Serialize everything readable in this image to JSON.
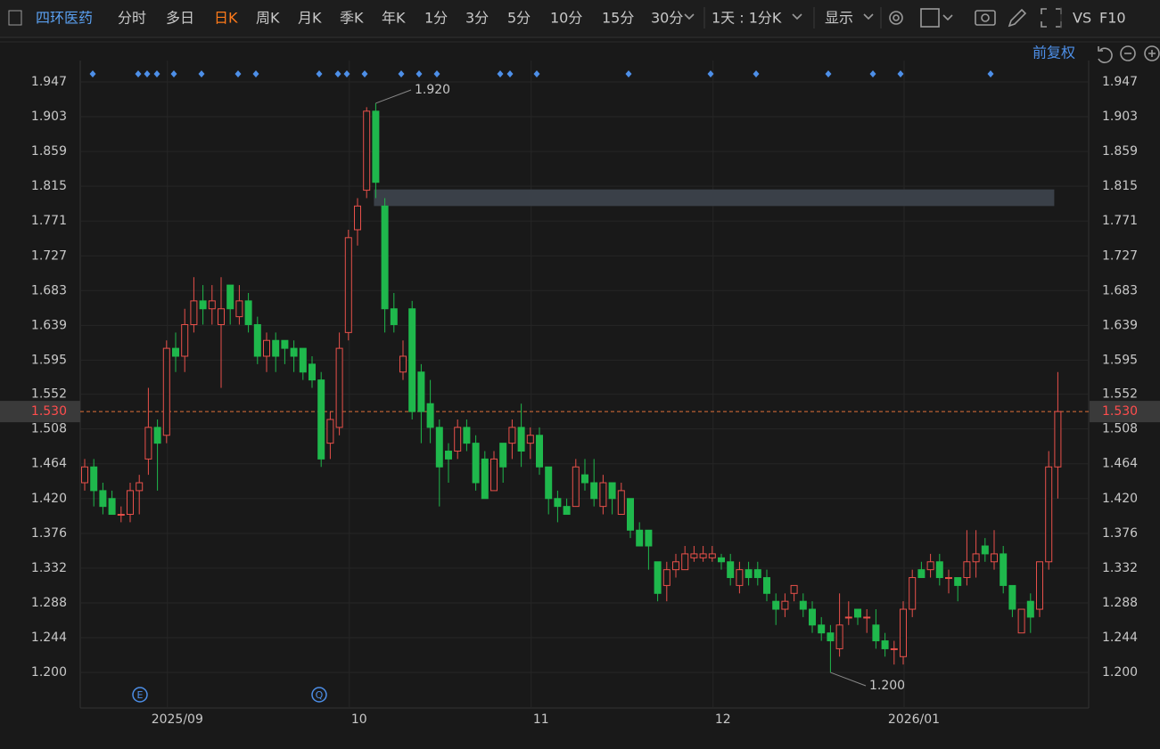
{
  "toolbar": {
    "items": [
      "四环医药",
      "分时",
      "多日",
      "日K",
      "周K",
      "月K",
      "季K",
      "年K",
      "1分",
      "3分",
      "5分",
      "10分",
      "15分",
      "30分",
      "1天 : 1分K",
      "显示",
      "VS",
      "F10"
    ],
    "adjust": "前复权"
  },
  "chart_data": {
    "type": "candlestick",
    "categories": [
      null,
      null,
      null,
      null,
      null,
      null,
      null,
      null,
      null,
      "2025/09",
      null,
      null,
      null,
      null,
      null,
      null,
      null,
      null,
      null,
      null,
      null,
      null,
      null,
      null,
      null,
      null,
      null,
      null,
      null,
      "10",
      null,
      null,
      null,
      null,
      null,
      null,
      null,
      null,
      null,
      null,
      null,
      null,
      null,
      null,
      null,
      null,
      null,
      null,
      null,
      "11",
      null,
      null,
      null,
      null,
      null,
      null,
      null,
      null,
      null,
      null,
      null,
      null,
      null,
      null,
      null,
      null,
      null,
      null,
      null,
      "12",
      null,
      null,
      null,
      null,
      null,
      null,
      null,
      null,
      null,
      null,
      null,
      null,
      null,
      null,
      null,
      null,
      null,
      null,
      null,
      null,
      "2026/01",
      null,
      null,
      null,
      null,
      null,
      null,
      null,
      null,
      null,
      null,
      null,
      null,
      null,
      null,
      null,
      null,
      null
    ],
    "open": [
      1.44,
      1.46,
      1.43,
      1.42,
      1.4,
      1.4,
      1.43,
      1.47,
      1.51,
      1.5,
      1.61,
      1.6,
      1.64,
      1.67,
      1.66,
      1.64,
      1.69,
      1.65,
      1.67,
      1.64,
      1.6,
      1.62,
      1.62,
      1.61,
      1.61,
      1.59,
      1.57,
      1.49,
      1.51,
      1.63,
      1.76,
      1.81,
      1.91,
      1.79,
      1.66,
      1.58,
      1.66,
      1.58,
      1.54,
      1.51,
      1.48,
      1.48,
      1.51,
      1.49,
      1.47,
      1.43,
      1.49,
      1.49,
      1.51,
      1.49,
      1.5,
      1.46,
      1.42,
      1.41,
      1.41,
      1.45,
      1.44,
      1.41,
      1.44,
      1.4,
      1.42,
      1.38,
      1.38,
      1.34,
      1.31,
      1.33,
      1.33,
      1.345,
      1.345,
      1.345,
      1.345,
      1.34,
      1.31,
      1.33,
      1.33,
      1.32,
      1.29,
      1.28,
      1.3,
      1.29,
      1.28,
      1.26,
      1.25,
      1.23,
      1.27,
      1.28,
      1.27,
      1.26,
      1.24,
      1.23,
      1.22,
      1.28,
      1.33,
      1.33,
      1.34,
      1.32,
      1.32,
      1.32,
      1.34,
      1.36,
      1.34,
      1.35,
      1.31,
      1.25,
      1.29,
      1.28,
      1.34,
      1.46
    ],
    "high": [
      1.47,
      1.47,
      1.44,
      1.43,
      1.41,
      1.44,
      1.45,
      1.56,
      1.52,
      1.62,
      1.63,
      1.66,
      1.7,
      1.69,
      1.69,
      1.7,
      1.69,
      1.69,
      1.68,
      1.65,
      1.63,
      1.63,
      1.62,
      1.62,
      1.61,
      1.6,
      1.58,
      1.53,
      1.63,
      1.76,
      1.8,
      1.915,
      1.92,
      1.8,
      1.68,
      1.62,
      1.67,
      1.59,
      1.57,
      1.52,
      1.49,
      1.52,
      1.52,
      1.5,
      1.48,
      1.48,
      1.49,
      1.52,
      1.54,
      1.51,
      1.51,
      1.46,
      1.43,
      1.42,
      1.47,
      1.47,
      1.47,
      1.45,
      1.44,
      1.44,
      1.42,
      1.39,
      1.38,
      1.34,
      1.34,
      1.35,
      1.36,
      1.36,
      1.36,
      1.36,
      1.35,
      1.35,
      1.34,
      1.34,
      1.34,
      1.33,
      1.3,
      1.3,
      1.31,
      1.3,
      1.29,
      1.27,
      1.26,
      1.3,
      1.29,
      1.28,
      1.28,
      1.28,
      1.25,
      1.24,
      1.29,
      1.33,
      1.34,
      1.35,
      1.35,
      1.33,
      1.32,
      1.38,
      1.38,
      1.37,
      1.38,
      1.36,
      1.31,
      1.28,
      1.3,
      1.34,
      1.48,
      1.58
    ],
    "low": [
      1.43,
      1.41,
      1.4,
      1.4,
      1.39,
      1.39,
      1.4,
      1.45,
      1.43,
      1.49,
      1.58,
      1.58,
      1.63,
      1.64,
      1.64,
      1.56,
      1.64,
      1.64,
      1.63,
      1.59,
      1.58,
      1.58,
      1.59,
      1.58,
      1.57,
      1.56,
      1.46,
      1.47,
      1.5,
      1.62,
      1.74,
      1.8,
      1.8,
      1.63,
      1.63,
      1.57,
      1.52,
      1.49,
      1.49,
      1.41,
      1.44,
      1.47,
      1.48,
      1.43,
      1.42,
      1.43,
      1.44,
      1.47,
      1.46,
      1.47,
      1.45,
      1.4,
      1.39,
      1.4,
      1.41,
      1.43,
      1.41,
      1.4,
      1.4,
      1.4,
      1.37,
      1.36,
      1.33,
      1.29,
      1.29,
      1.32,
      1.33,
      1.34,
      1.34,
      1.34,
      1.33,
      1.31,
      1.3,
      1.31,
      1.31,
      1.29,
      1.26,
      1.27,
      1.29,
      1.27,
      1.25,
      1.24,
      1.2,
      1.22,
      1.26,
      1.26,
      1.25,
      1.23,
      1.22,
      1.21,
      1.21,
      1.27,
      1.32,
      1.32,
      1.31,
      1.3,
      1.29,
      1.31,
      1.32,
      1.34,
      1.33,
      1.3,
      1.27,
      1.25,
      1.25,
      1.27,
      1.33,
      1.42
    ],
    "close": [
      1.46,
      1.43,
      1.41,
      1.4,
      1.4,
      1.43,
      1.44,
      1.51,
      1.49,
      1.61,
      1.6,
      1.64,
      1.67,
      1.66,
      1.67,
      1.66,
      1.66,
      1.67,
      1.64,
      1.6,
      1.62,
      1.6,
      1.61,
      1.6,
      1.58,
      1.57,
      1.47,
      1.52,
      1.61,
      1.75,
      1.79,
      1.91,
      1.82,
      1.66,
      1.64,
      1.6,
      1.53,
      1.53,
      1.51,
      1.46,
      1.47,
      1.51,
      1.49,
      1.44,
      1.42,
      1.47,
      1.46,
      1.51,
      1.48,
      1.5,
      1.46,
      1.42,
      1.41,
      1.4,
      1.46,
      1.44,
      1.42,
      1.44,
      1.42,
      1.43,
      1.38,
      1.36,
      1.36,
      1.3,
      1.33,
      1.34,
      1.35,
      1.35,
      1.35,
      1.35,
      1.34,
      1.32,
      1.33,
      1.32,
      1.32,
      1.3,
      1.28,
      1.29,
      1.31,
      1.28,
      1.26,
      1.25,
      1.24,
      1.26,
      1.27,
      1.27,
      1.27,
      1.24,
      1.23,
      1.23,
      1.28,
      1.32,
      1.32,
      1.34,
      1.32,
      1.32,
      1.31,
      1.34,
      1.35,
      1.35,
      1.35,
      1.31,
      1.28,
      1.28,
      1.27,
      1.34,
      1.46,
      1.53
    ],
    "up_color": "#e8504a",
    "down_color": "#1fb84c",
    "ylim": [
      1.155,
      1.974
    ],
    "yticks": [
      1.947,
      1.903,
      1.859,
      1.815,
      1.771,
      1.727,
      1.683,
      1.639,
      1.595,
      1.552,
      1.508,
      1.464,
      {
        "value": 1.42,
        "label": "1.420"
      },
      1.376,
      1.332,
      1.288,
      1.244,
      {
        "value": 1.2,
        "label": "1.200"
      }
    ],
    "grid": true,
    "last_price": {
      "value": 1.53,
      "label": "1.530"
    },
    "annotations": [
      {
        "value": 1.92,
        "label": "1.920"
      },
      {
        "value": 1.2,
        "label": "1.200"
      }
    ],
    "gap_zone": [
      1.79,
      1.811
    ],
    "markers": [
      "E",
      "Q"
    ]
  }
}
